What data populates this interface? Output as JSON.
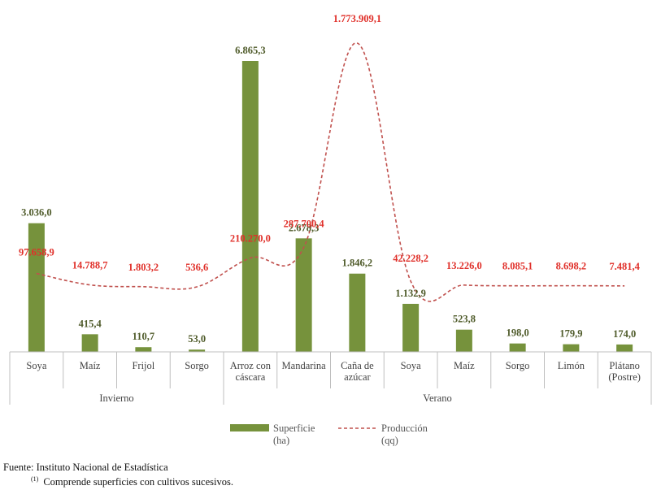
{
  "chart_data": {
    "type": "bar",
    "groups": [
      {
        "label": "Invierno",
        "count": 4
      },
      {
        "label": "Verano",
        "count": 8
      }
    ],
    "categories": [
      [
        "Soya"
      ],
      [
        "Maíz"
      ],
      [
        "Frijol"
      ],
      [
        "Sorgo"
      ],
      [
        "Arroz con",
        "cáscara"
      ],
      [
        "Mandarina"
      ],
      [
        "Caña de",
        "azúcar"
      ],
      [
        "Soya"
      ],
      [
        "Maíz"
      ],
      [
        "Sorgo"
      ],
      [
        "Limón"
      ],
      [
        "Plátano",
        "(Postre)"
      ]
    ],
    "series": [
      {
        "name": "Superficie (ha)",
        "kind": "bar",
        "color": "#76923c",
        "values": [
          3036.0,
          415.4,
          110.7,
          53.0,
          6865.3,
          2678.3,
          1846.2,
          1132.9,
          523.8,
          198.0,
          179.9,
          174.0
        ],
        "labels": [
          "3.036,0",
          "415,4",
          "110,7",
          "53,0",
          "6.865,3",
          "2.678,3",
          "1.846,2",
          "1.132,9",
          "523,8",
          "198,0",
          "179,9",
          "174,0"
        ]
      },
      {
        "name": "Producción (qq)",
        "kind": "line",
        "color": "#c0504d",
        "values": [
          97658.9,
          14788.7,
          1803.2,
          536.6,
          210270.0,
          287700.4,
          1773909.1,
          42228.2,
          13226.0,
          8085.1,
          8698.2,
          7481.4
        ],
        "labels": [
          "97.658,9",
          "14.788,7",
          "1.803,2",
          "536,6",
          "210.270,0",
          "287.700,4",
          "1.773.909,1",
          "42.228,2",
          "13.226,0",
          "8.085,1",
          "8.698,2",
          "7.481,4"
        ]
      }
    ],
    "legend": {
      "bar_label": [
        "Superficie",
        "(ha)"
      ],
      "line_label": [
        "Producción",
        "(qq)"
      ],
      "placement": "bottom"
    }
  },
  "footer": {
    "source": "Fuente: Instituto Nacional de Estadística",
    "note_marker": "(1)",
    "note": "Comprende superficies con cultivos sucesivos."
  }
}
